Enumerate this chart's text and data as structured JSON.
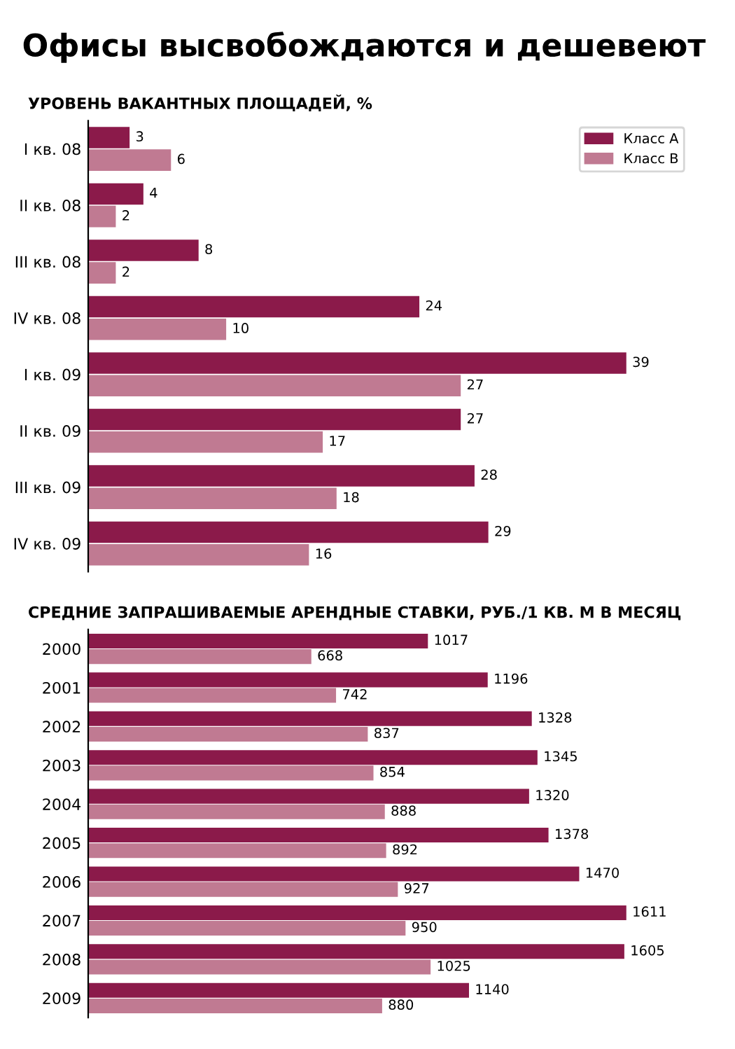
{
  "chart_data": [
    {
      "type": "bar",
      "orientation": "horizontal",
      "title": "Офисы высвобождаются и дешевеют",
      "subtitle": "УРОВЕНЬ ВАКАНТНЫХ ПЛОЩАДЕЙ, %",
      "categories": [
        "I кв. 08",
        "II кв. 08",
        "III кв. 08",
        "IV кв. 08",
        "I кв. 09",
        "II кв. 09",
        "III кв. 09",
        "IV кв. 09"
      ],
      "series": [
        {
          "name": "Класс А",
          "color": "#8b1a4a",
          "values": [
            3,
            4,
            8,
            24,
            39,
            27,
            28,
            29
          ]
        },
        {
          "name": "Класс В",
          "color": "#c07a92",
          "values": [
            6,
            2,
            2,
            10,
            27,
            17,
            18,
            16
          ]
        }
      ],
      "data_labels": true,
      "legend": "top right",
      "grid": false
    },
    {
      "type": "bar",
      "orientation": "horizontal",
      "title": "СРЕДНИЕ ЗАПРАШИВАЕМЫЕ АРЕНДНЫЕ СТАВКИ, РУБ./1 КВ. М В МЕСЯЦ",
      "categories": [
        "2000",
        "2001",
        "2002",
        "2003",
        "2004",
        "2005",
        "2006",
        "2007",
        "2008",
        "2009"
      ],
      "series": [
        {
          "color": "#8b1a4a",
          "values": [
            1017,
            1196,
            1328,
            1345,
            1320,
            1378,
            1470,
            1611,
            1605,
            1140
          ]
        },
        {
          "color": "#c07a92",
          "values": [
            668,
            742,
            837,
            854,
            888,
            892,
            927,
            950,
            1025,
            880
          ]
        }
      ],
      "data_labels": true,
      "grid": false
    }
  ]
}
